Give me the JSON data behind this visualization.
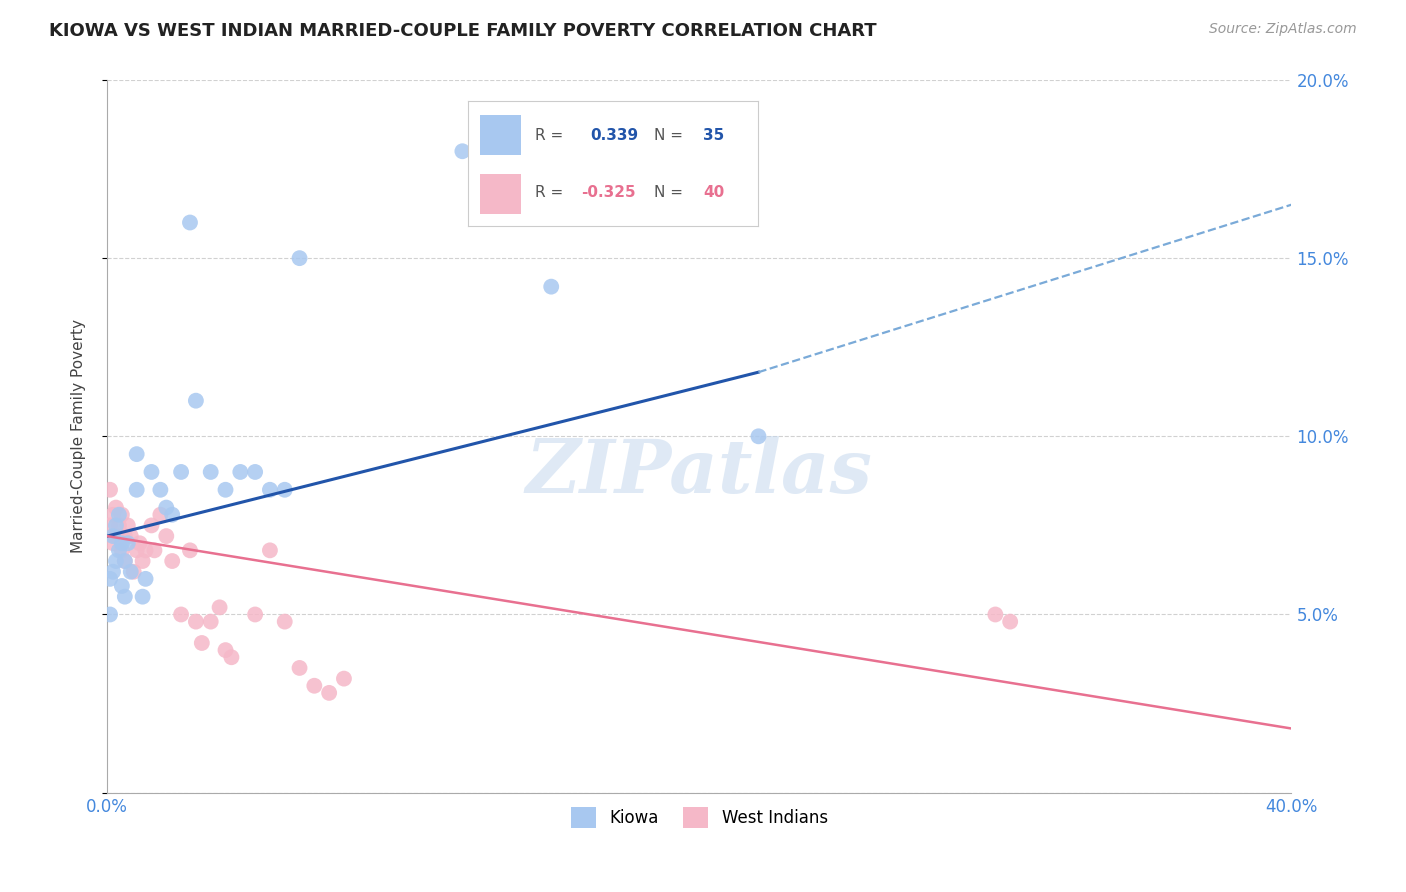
{
  "title": "KIOWA VS WEST INDIAN MARRIED-COUPLE FAMILY POVERTY CORRELATION CHART",
  "source": "Source: ZipAtlas.com",
  "ylabel": "Married-Couple Family Poverty",
  "x_min": 0.0,
  "x_max": 0.4,
  "y_min": 0.0,
  "y_max": 0.2,
  "kiowa_R": 0.339,
  "kiowa_N": 35,
  "west_indian_R": -0.325,
  "west_indian_N": 40,
  "kiowa_color": "#a8c8f0",
  "west_indian_color": "#f5b8c8",
  "kiowa_line_color": "#2255aa",
  "kiowa_dash_color": "#7aaad8",
  "west_indian_line_color": "#e87090",
  "kiowa_scatter_x": [
    0.001,
    0.001,
    0.002,
    0.002,
    0.003,
    0.003,
    0.004,
    0.004,
    0.005,
    0.005,
    0.006,
    0.006,
    0.007,
    0.008,
    0.01,
    0.01,
    0.012,
    0.013,
    0.015,
    0.018,
    0.02,
    0.022,
    0.025,
    0.028,
    0.03,
    0.035,
    0.04,
    0.045,
    0.05,
    0.055,
    0.06,
    0.065,
    0.12,
    0.15,
    0.22
  ],
  "kiowa_scatter_y": [
    0.05,
    0.06,
    0.062,
    0.072,
    0.065,
    0.075,
    0.068,
    0.078,
    0.058,
    0.07,
    0.055,
    0.065,
    0.07,
    0.062,
    0.085,
    0.095,
    0.055,
    0.06,
    0.09,
    0.085,
    0.08,
    0.078,
    0.09,
    0.16,
    0.11,
    0.09,
    0.085,
    0.09,
    0.09,
    0.085,
    0.085,
    0.15,
    0.18,
    0.142,
    0.1
  ],
  "west_indian_scatter_x": [
    0.001,
    0.001,
    0.002,
    0.002,
    0.003,
    0.003,
    0.004,
    0.005,
    0.005,
    0.006,
    0.006,
    0.007,
    0.008,
    0.009,
    0.01,
    0.011,
    0.012,
    0.013,
    0.015,
    0.016,
    0.018,
    0.02,
    0.022,
    0.025,
    0.028,
    0.03,
    0.032,
    0.035,
    0.038,
    0.04,
    0.042,
    0.05,
    0.055,
    0.06,
    0.065,
    0.07,
    0.075,
    0.08,
    0.3,
    0.305
  ],
  "west_indian_scatter_y": [
    0.075,
    0.085,
    0.078,
    0.07,
    0.08,
    0.072,
    0.075,
    0.068,
    0.078,
    0.072,
    0.065,
    0.075,
    0.072,
    0.062,
    0.068,
    0.07,
    0.065,
    0.068,
    0.075,
    0.068,
    0.078,
    0.072,
    0.065,
    0.05,
    0.068,
    0.048,
    0.042,
    0.048,
    0.052,
    0.04,
    0.038,
    0.05,
    0.068,
    0.048,
    0.035,
    0.03,
    0.028,
    0.032,
    0.05,
    0.048
  ],
  "kiowa_line_x0": 0.0,
  "kiowa_line_x_solid_end": 0.22,
  "kiowa_line_x1": 0.4,
  "kiowa_line_y0": 0.072,
  "kiowa_line_y_solid_end": 0.118,
  "kiowa_line_y1": 0.165,
  "wi_line_x0": 0.0,
  "wi_line_x1": 0.4,
  "wi_line_y0": 0.072,
  "wi_line_y1": 0.018,
  "background_color": "#ffffff",
  "grid_color": "#cccccc",
  "watermark": "ZIPatlas"
}
